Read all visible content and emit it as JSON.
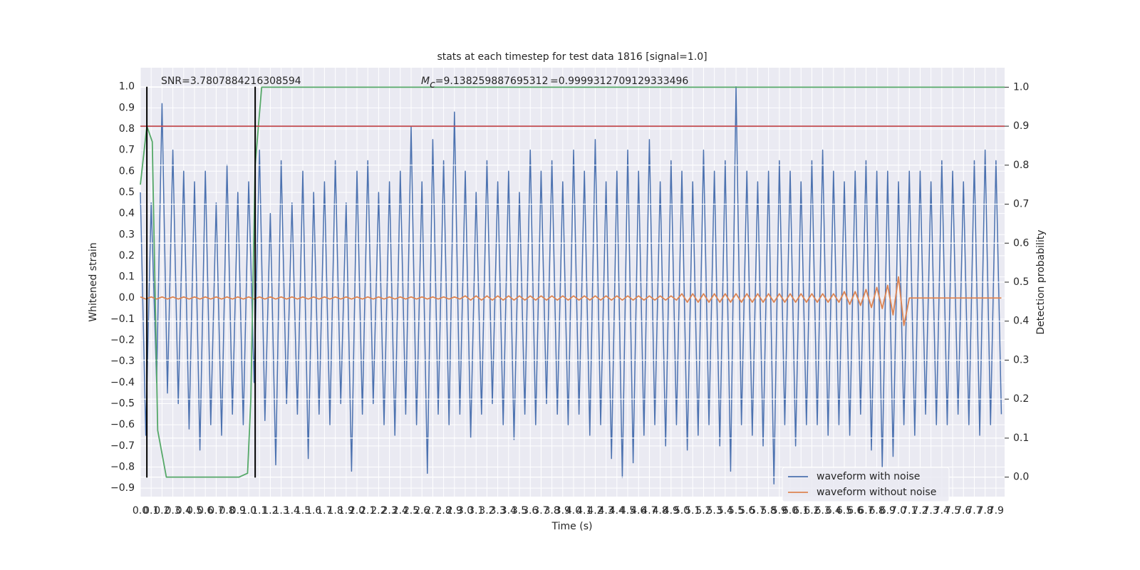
{
  "chart_data": {
    "type": "line",
    "title": "stats at each timestep for test data 1816 [signal=1.0]",
    "xlabel": "Time (s)",
    "ylabel": "Whitened strain",
    "y2label": "Detection probability",
    "annotations": {
      "snr": "SNR=3.7807884216308594",
      "mc_symbol": "M",
      "mc_subscript": "c",
      "mc_value": "=9.138259887695312",
      "probability": "=0.9999312709129333496"
    },
    "grid": true,
    "legend": "lower right",
    "xlim": [
      0,
      7.98
    ],
    "ylim": [
      -0.94,
      1.09
    ],
    "y2lim": [
      -0.05,
      1.05
    ],
    "xticks": [
      {
        "value": 0,
        "label": "0.0"
      },
      0.1,
      0.2,
      0.3,
      0.4,
      0.5,
      0.6,
      0.7,
      0.8,
      0.9,
      {
        "value": 1,
        "label": "1.0"
      },
      1.1,
      1.2,
      1.3,
      1.4,
      1.5,
      1.6,
      1.7,
      1.8,
      1.9,
      {
        "value": 2,
        "label": "2.0"
      },
      2.1,
      2.2,
      2.3,
      2.4,
      2.5,
      2.6,
      2.7,
      2.8,
      2.9,
      {
        "value": 3,
        "label": "3.0"
      },
      3.1,
      3.2,
      3.3,
      3.4,
      3.5,
      3.6,
      3.7,
      3.8,
      3.9,
      {
        "value": 4,
        "label": "4.0"
      },
      4.1,
      4.2,
      4.3,
      4.4,
      4.5,
      4.6,
      4.7,
      4.8,
      4.9,
      {
        "value": 5,
        "label": "5.0"
      },
      5.1,
      5.2,
      5.3,
      5.4,
      5.5,
      5.6,
      5.7,
      5.8,
      5.9,
      {
        "value": 6,
        "label": "6.0"
      },
      6.1,
      6.2,
      6.3,
      6.4,
      6.5,
      6.6,
      6.7,
      6.8,
      6.9,
      {
        "value": 7,
        "label": "7.0"
      },
      7.1,
      7.2,
      7.3,
      7.4,
      7.5,
      7.6,
      7.7,
      7.8,
      7.9
    ],
    "yticks": [
      {
        "value": -0.9,
        "label": "−0.9"
      },
      {
        "value": -0.8,
        "label": "−0.8"
      },
      {
        "value": -0.7,
        "label": "−0.7"
      },
      {
        "value": -0.6,
        "label": "−0.6"
      },
      {
        "value": -0.5,
        "label": "−0.5"
      },
      {
        "value": -0.4,
        "label": "−0.4"
      },
      {
        "value": -0.3,
        "label": "−0.3"
      },
      {
        "value": -0.2,
        "label": "−0.2"
      },
      {
        "value": -0.1,
        "label": "−0.1"
      },
      {
        "value": 0,
        "label": "0.0"
      },
      0.1,
      0.2,
      0.3,
      0.4,
      0.5,
      0.6,
      0.7,
      0.8,
      0.9,
      {
        "value": 1,
        "label": "1.0"
      }
    ],
    "y2ticks": [
      {
        "value": 0,
        "label": "0.0"
      },
      0.1,
      0.2,
      0.3,
      0.4,
      0.5,
      0.6,
      0.7,
      0.8,
      0.9,
      {
        "value": 1,
        "label": "1.0"
      }
    ],
    "x": [
      0,
      0.05,
      0.1,
      0.15,
      0.2,
      0.25,
      0.3,
      0.35,
      0.4,
      0.45,
      0.5,
      0.55,
      0.6,
      0.65,
      0.7,
      0.75,
      0.8,
      0.85,
      0.9,
      0.95,
      1,
      1.05,
      1.1,
      1.15,
      1.2,
      1.25,
      1.3,
      1.35,
      1.4,
      1.45,
      1.5,
      1.55,
      1.6,
      1.65,
      1.7,
      1.75,
      1.8,
      1.85,
      1.9,
      1.95,
      2,
      2.05,
      2.1,
      2.15,
      2.2,
      2.25,
      2.3,
      2.35,
      2.4,
      2.45,
      2.5,
      2.55,
      2.6,
      2.65,
      2.7,
      2.75,
      2.8,
      2.85,
      2.9,
      2.95,
      3,
      3.05,
      3.1,
      3.15,
      3.2,
      3.25,
      3.3,
      3.35,
      3.4,
      3.45,
      3.5,
      3.55,
      3.6,
      3.65,
      3.7,
      3.75,
      3.8,
      3.85,
      3.9,
      3.95,
      4,
      4.05,
      4.1,
      4.15,
      4.2,
      4.25,
      4.3,
      4.35,
      4.4,
      4.45,
      4.5,
      4.55,
      4.6,
      4.65,
      4.7,
      4.75,
      4.8,
      4.85,
      4.9,
      4.95,
      5,
      5.05,
      5.1,
      5.15,
      5.2,
      5.25,
      5.3,
      5.35,
      5.4,
      5.45,
      5.5,
      5.55,
      5.6,
      5.65,
      5.7,
      5.75,
      5.8,
      5.85,
      5.9,
      5.95,
      6,
      6.05,
      6.1,
      6.15,
      6.2,
      6.25,
      6.3,
      6.35,
      6.4,
      6.45,
      6.5,
      6.55,
      6.6,
      6.65,
      6.7,
      6.75,
      6.8,
      6.85,
      6.9,
      6.95,
      7,
      7.05,
      7.1,
      7.15,
      7.2,
      7.25,
      7.3,
      7.35,
      7.4,
      7.45,
      7.5,
      7.55,
      7.6,
      7.65,
      7.7,
      7.75,
      7.8,
      7.85,
      7.9,
      7.95
    ],
    "series": [
      {
        "name": "waveform with noise",
        "color": "#4c72b0",
        "values": [
          0.5,
          -0.65,
          0.45,
          -0.4,
          0.92,
          -0.45,
          0.7,
          -0.5,
          0.6,
          -0.62,
          0.55,
          -0.72,
          0.6,
          -0.6,
          0.45,
          -0.65,
          0.63,
          -0.55,
          0.5,
          -0.6,
          0.55,
          -0.4,
          0.7,
          -0.58,
          0.4,
          -0.79,
          0.65,
          -0.5,
          0.45,
          -0.55,
          0.6,
          -0.76,
          0.5,
          -0.55,
          0.55,
          -0.6,
          0.65,
          -0.5,
          0.45,
          -0.82,
          0.6,
          -0.55,
          0.65,
          -0.5,
          0.5,
          -0.6,
          0.55,
          -0.65,
          0.6,
          -0.55,
          0.81,
          -0.6,
          0.55,
          -0.83,
          0.75,
          -0.55,
          0.65,
          -0.6,
          0.88,
          -0.55,
          0.6,
          -0.66,
          0.5,
          -0.55,
          0.65,
          -0.5,
          0.55,
          -0.6,
          0.6,
          -0.67,
          0.5,
          -0.55,
          0.7,
          -0.6,
          0.6,
          -0.5,
          0.65,
          -0.55,
          0.55,
          -0.6,
          0.7,
          -0.55,
          0.6,
          -0.65,
          0.75,
          -0.6,
          0.55,
          -0.76,
          0.6,
          -0.85,
          0.7,
          -0.78,
          0.6,
          -0.65,
          0.75,
          -0.6,
          0.55,
          -0.7,
          0.65,
          -0.6,
          0.6,
          -0.72,
          0.55,
          -0.65,
          0.7,
          -0.6,
          0.6,
          -0.7,
          0.65,
          -0.82,
          1.0,
          -0.6,
          0.6,
          -0.65,
          0.55,
          -0.7,
          0.6,
          -0.88,
          0.65,
          -0.6,
          0.6,
          -0.7,
          0.55,
          -0.6,
          0.65,
          -0.6,
          0.7,
          -0.65,
          0.6,
          -0.6,
          0.55,
          -0.65,
          0.6,
          -0.55,
          0.65,
          -0.72,
          0.6,
          -0.8,
          0.6,
          -0.75,
          0.55,
          -0.6,
          0.6,
          -0.65,
          0.6,
          -0.55,
          0.55,
          -0.6,
          0.65,
          -0.6,
          0.6,
          -0.55,
          0.55,
          -0.6,
          0.65,
          -0.65,
          0.7,
          -0.6,
          0.65,
          -0.55
        ]
      },
      {
        "name": "waveform without noise",
        "color": "#dd8452",
        "values": [
          0.005,
          -0.005,
          0.005,
          -0.005,
          0.005,
          -0.005,
          0.005,
          -0.005,
          0.005,
          -0.005,
          0.005,
          -0.005,
          0.005,
          -0.005,
          0.005,
          -0.005,
          0.005,
          -0.005,
          0.005,
          -0.005,
          0.005,
          -0.005,
          0.005,
          -0.005,
          0.005,
          -0.005,
          0.005,
          -0.005,
          0.005,
          -0.005,
          0.005,
          -0.005,
          0.005,
          -0.005,
          0.005,
          -0.005,
          0.005,
          -0.005,
          0.005,
          -0.005,
          0.005,
          -0.005,
          0.005,
          -0.005,
          0.005,
          -0.005,
          0.005,
          -0.005,
          0.005,
          -0.005,
          0.005,
          -0.005,
          0.005,
          -0.005,
          0.005,
          -0.005,
          0.005,
          -0.005,
          0.005,
          -0.005,
          0.01,
          -0.01,
          0.01,
          -0.01,
          0.01,
          -0.01,
          0.01,
          -0.01,
          0.01,
          -0.01,
          0.01,
          -0.01,
          0.01,
          -0.01,
          0.01,
          -0.01,
          0.01,
          -0.01,
          0.01,
          -0.01,
          0.01,
          -0.01,
          0.01,
          -0.01,
          0.01,
          -0.01,
          0.01,
          -0.01,
          0.01,
          -0.01,
          0.01,
          -0.01,
          0.01,
          -0.01,
          0.01,
          -0.01,
          0.01,
          -0.01,
          0.01,
          -0.01,
          0.02,
          -0.02,
          0.02,
          -0.02,
          0.02,
          -0.02,
          0.02,
          -0.02,
          0.02,
          -0.02,
          0.02,
          -0.02,
          0.02,
          -0.02,
          0.02,
          -0.02,
          0.02,
          -0.02,
          0.02,
          -0.02,
          0.02,
          -0.02,
          0.02,
          -0.02,
          0.02,
          -0.02,
          0.02,
          -0.02,
          0.02,
          -0.02,
          0.03,
          -0.03,
          0.03,
          -0.035,
          0.04,
          -0.045,
          0.05,
          -0.05,
          0.06,
          -0.08,
          0.1,
          -0.13,
          0,
          0,
          0,
          0,
          0,
          0,
          0,
          0,
          0,
          0,
          0,
          0,
          0,
          0,
          0,
          0,
          0,
          0
        ]
      }
    ],
    "probability": {
      "color": "#55a868",
      "axis": "y2",
      "x": [
        0,
        0.06,
        0.11,
        0.16,
        0.24,
        0.91,
        0.99,
        1.02,
        1.06,
        1.12,
        7.98
      ],
      "values": [
        0.75,
        0.9,
        0.86,
        0.12,
        0,
        0,
        0.01,
        0.2,
        0.8,
        1,
        1
      ]
    },
    "threshold": {
      "color": "#c44e52",
      "axis": "y2",
      "value": 0.9
    },
    "markers": {
      "color": "#000000",
      "x": [
        0.06,
        1.06
      ],
      "ymin": -0.85,
      "ymax": 1.0
    }
  }
}
